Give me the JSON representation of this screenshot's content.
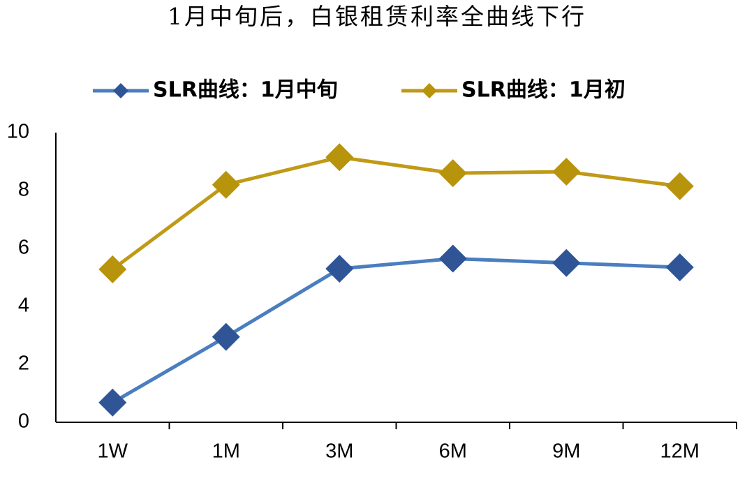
{
  "chart_data": {
    "type": "line",
    "title": "1月中旬后，白银租赁利率全曲线下行",
    "categories": [
      "1W",
      "1M",
      "3M",
      "6M",
      "9M",
      "12M"
    ],
    "series": [
      {
        "name": "SLR曲线：1月中旬",
        "color": "#4a7ebf",
        "marker_color": "#2f5597",
        "values": [
          0.68,
          2.95,
          5.3,
          5.65,
          5.5,
          5.35
        ]
      },
      {
        "name": "SLR曲线：1月初",
        "color": "#c09a16",
        "marker_color": "#b8930c",
        "values": [
          5.28,
          8.2,
          9.15,
          8.6,
          8.65,
          8.15
        ]
      }
    ],
    "ylim": [
      0,
      10
    ],
    "yticks": [
      0,
      2,
      4,
      6,
      8,
      10
    ],
    "grid": false,
    "legend": "top"
  }
}
